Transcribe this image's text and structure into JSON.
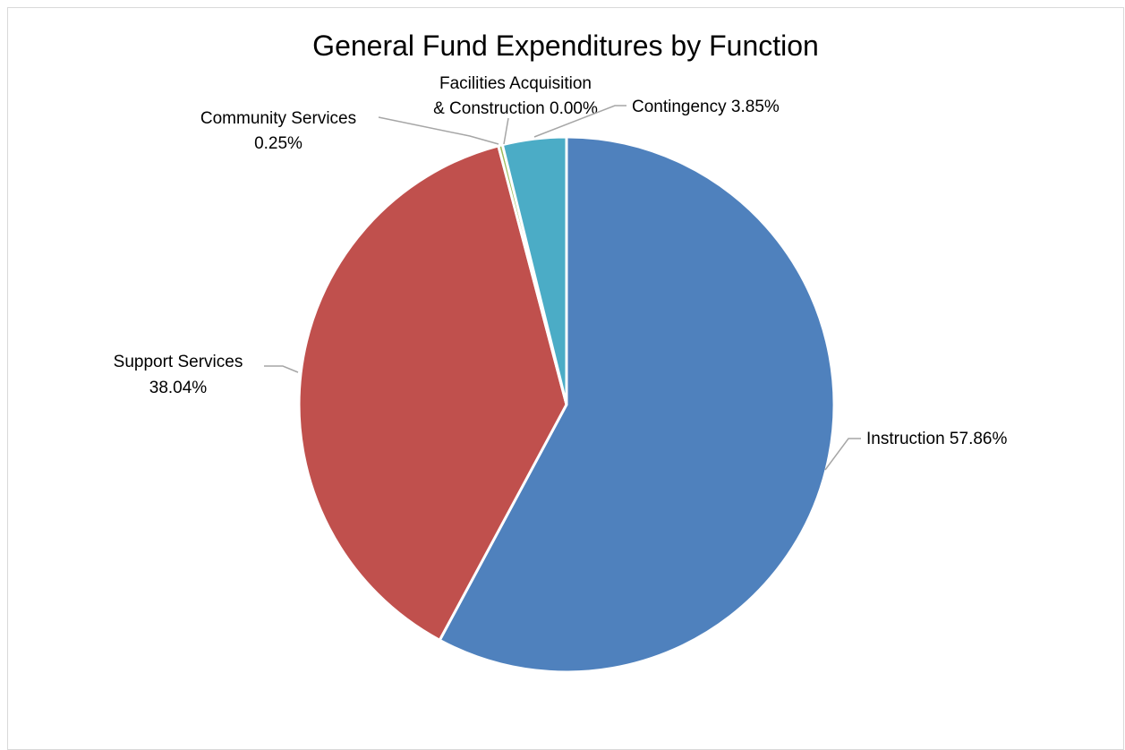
{
  "chart_data": {
    "type": "pie",
    "title": "General Fund Expenditures by Function",
    "slices": [
      {
        "category": "Instruction",
        "value": 57.86,
        "label_text": [
          "Instruction 57.86%"
        ],
        "color": "#4F81BD"
      },
      {
        "category": "Support Services",
        "value": 38.04,
        "label_text": [
          "Support Services",
          "38.04%"
        ],
        "color": "#C0504D"
      },
      {
        "category": "Community Services",
        "value": 0.25,
        "label_text": [
          "Community Services",
          "0.25%"
        ],
        "color": "#9BBB59"
      },
      {
        "category": "Facilities Acquisition & Construction",
        "value": 0.0,
        "label_text": [
          "Facilities Acquisition",
          "& Construction 0.00%"
        ],
        "color": "#8064A2"
      },
      {
        "category": "Contingency",
        "value": 3.85,
        "label_text": [
          "Contingency 3.85%"
        ],
        "color": "#4BACC6"
      }
    ],
    "start_angle": "12 o'clock",
    "direction": "clockwise",
    "legend": "none",
    "data_labels": "outside with leader lines"
  }
}
